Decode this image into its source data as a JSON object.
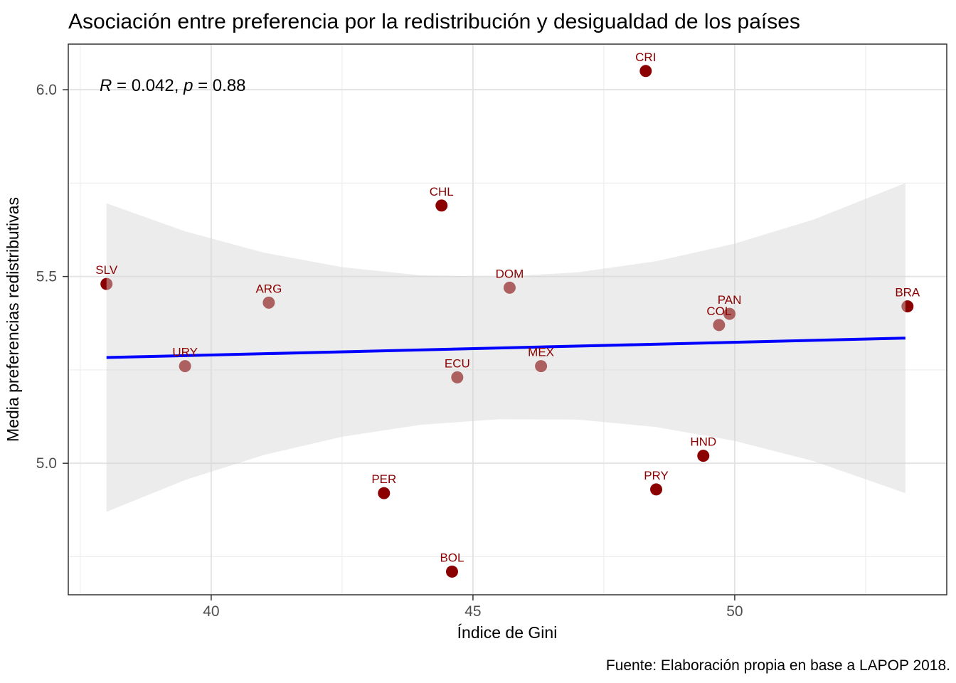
{
  "chart_data": {
    "type": "scatter",
    "title": "Asociación entre preferencia por la redistribución y desigualdad de los países",
    "annotation": {
      "r_var": "R",
      "r_rest": " = 0.042, ",
      "p_var": "p",
      "p_rest": " = 0.88",
      "full_text": "R = 0.042, p = 0.88"
    },
    "xlabel": "Índice de Gini",
    "ylabel": "Media preferencias redistributivas",
    "caption": "Fuente: Elaboración propia en base a LAPOP 2018.",
    "xlim": [
      37.27,
      54.05
    ],
    "ylim": [
      4.648,
      6.122
    ],
    "x_ticks": [
      {
        "value": 40,
        "label": "40"
      },
      {
        "value": 45,
        "label": "45"
      },
      {
        "value": 50,
        "label": "50"
      }
    ],
    "y_ticks": [
      {
        "value": 5.0,
        "label": "5.0"
      },
      {
        "value": 5.5,
        "label": "5.5"
      },
      {
        "value": 6.0,
        "label": "6.0"
      }
    ],
    "x_minor": [
      37.5,
      42.5,
      47.5,
      52.5
    ],
    "y_minor": [
      4.75,
      5.25,
      5.75
    ],
    "grid": true,
    "legend": false,
    "points": [
      {
        "label": "SLV",
        "gini": 38.0,
        "pref": 5.48
      },
      {
        "label": "URY",
        "gini": 39.5,
        "pref": 5.26
      },
      {
        "label": "ARG",
        "gini": 41.1,
        "pref": 5.43
      },
      {
        "label": "PER",
        "gini": 43.3,
        "pref": 4.92
      },
      {
        "label": "CHL",
        "gini": 44.4,
        "pref": 5.69
      },
      {
        "label": "BOL",
        "gini": 44.6,
        "pref": 4.71
      },
      {
        "label": "ECU",
        "gini": 44.7,
        "pref": 5.23
      },
      {
        "label": "DOM",
        "gini": 45.7,
        "pref": 5.47
      },
      {
        "label": "MEX",
        "gini": 46.3,
        "pref": 5.26
      },
      {
        "label": "CRI",
        "gini": 48.3,
        "pref": 6.05
      },
      {
        "label": "PRY",
        "gini": 48.5,
        "pref": 4.93
      },
      {
        "label": "HND",
        "gini": 49.4,
        "pref": 5.02
      },
      {
        "label": "COL",
        "gini": 49.7,
        "pref": 5.37
      },
      {
        "label": "PAN",
        "gini": 49.9,
        "pref": 5.4
      },
      {
        "label": "BRA",
        "gini": 53.3,
        "pref": 5.42
      }
    ],
    "regression_line": {
      "x": [
        38.0,
        53.26
      ],
      "y": [
        5.283,
        5.335
      ]
    },
    "confidence_band": [
      {
        "x": 38.0,
        "upper": 5.696,
        "lower": 4.87
      },
      {
        "x": 39.5,
        "upper": 5.621,
        "lower": 4.955
      },
      {
        "x": 41.0,
        "upper": 5.564,
        "lower": 5.022
      },
      {
        "x": 42.5,
        "upper": 5.525,
        "lower": 5.071
      },
      {
        "x": 44.0,
        "upper": 5.503,
        "lower": 5.103
      },
      {
        "x": 45.5,
        "upper": 5.499,
        "lower": 5.118
      },
      {
        "x": 47.0,
        "upper": 5.511,
        "lower": 5.117
      },
      {
        "x": 48.5,
        "upper": 5.541,
        "lower": 5.097
      },
      {
        "x": 50.0,
        "upper": 5.588,
        "lower": 5.06
      },
      {
        "x": 51.5,
        "upper": 5.652,
        "lower": 5.006
      },
      {
        "x": 53.26,
        "upper": 5.75,
        "lower": 4.92
      }
    ],
    "colors": {
      "point": "#8B0000",
      "point_label": "#8B0000",
      "regression_line": "#0000FF",
      "band": "rgba(213,213,213,0.45)",
      "grid_major": "#E2E2E2",
      "grid_minor": "#ECECEC",
      "tick_label": "#4D4D4D",
      "panel_border": "#333333",
      "title": "#000000"
    }
  }
}
